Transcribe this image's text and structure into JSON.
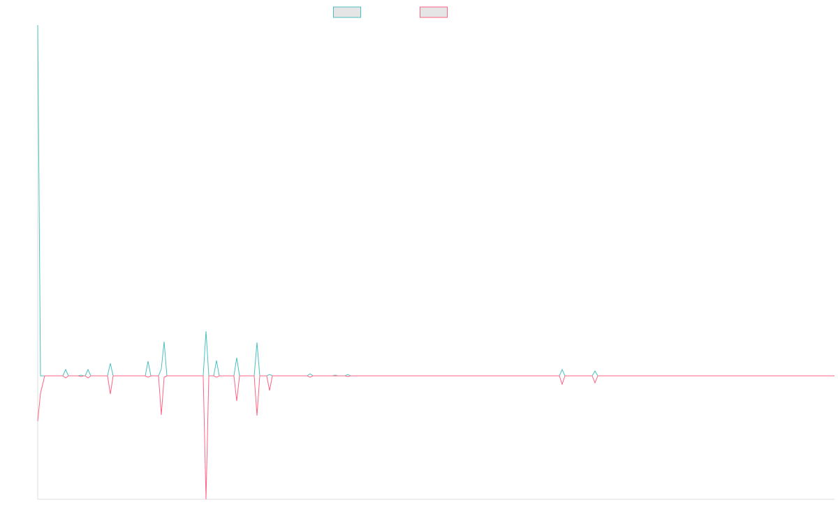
{
  "chart_data": {
    "type": "line",
    "legend": "top",
    "x": [
      0,
      4,
      10,
      36,
      40,
      44,
      58,
      62,
      66,
      68,
      72,
      76,
      100,
      104,
      108,
      154,
      158,
      162,
      173,
      177,
      181,
      185,
      237,
      241,
      245,
      252,
      256,
      260,
      281,
      285,
      289,
      310,
      314,
      318,
      328,
      332,
      336,
      386,
      390,
      394,
      422,
      426,
      430,
      440,
      444,
      448,
      747,
      751,
      755,
      794,
      798,
      802,
      1141
    ],
    "series": [
      {
        "color": "#4bc0c0",
        "values": [
          503,
          0,
          0,
          0,
          9,
          0,
          0,
          1,
          0,
          0,
          9,
          0,
          0,
          18,
          0,
          0,
          21,
          0,
          0,
          10,
          49,
          0,
          0,
          64,
          0,
          0,
          22,
          0,
          0,
          26,
          0,
          0,
          48,
          0,
          0,
          2,
          0,
          0,
          3,
          0,
          0,
          1,
          0,
          0,
          2,
          0,
          0,
          9,
          0,
          0,
          7,
          0,
          0
        ]
      },
      {
        "color": "#ff6384",
        "values": [
          -65,
          -25,
          0,
          0,
          -3,
          0,
          0,
          -1,
          0,
          0,
          -3,
          0,
          0,
          -26,
          0,
          0,
          -2,
          0,
          0,
          -56,
          -2,
          0,
          0,
          -177,
          0,
          0,
          -2,
          0,
          0,
          -36,
          0,
          0,
          -57,
          0,
          0,
          -21,
          0,
          0,
          -2,
          0,
          0,
          0,
          0,
          0,
          -1,
          0,
          0,
          -12,
          0,
          0,
          -10,
          0,
          0
        ]
      }
    ],
    "xlim": [
      0,
      1141
    ],
    "ylim": [
      -177,
      503
    ]
  }
}
